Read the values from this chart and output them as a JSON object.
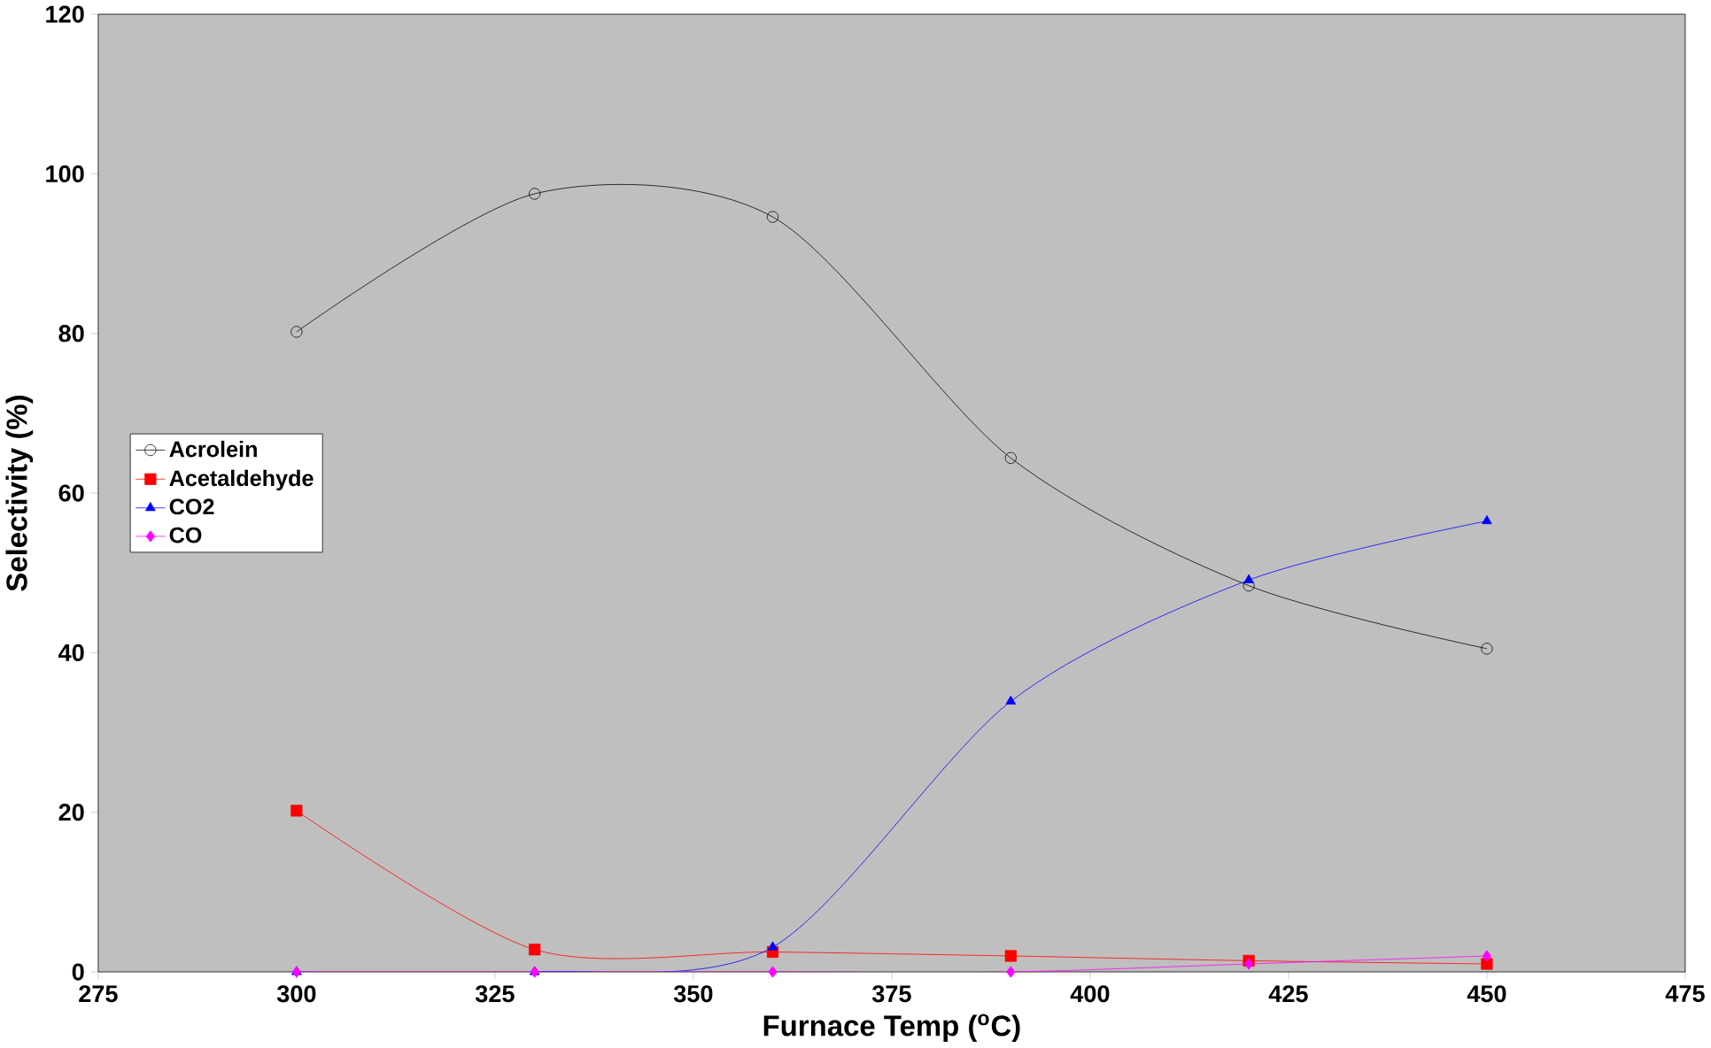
{
  "chart_data": {
    "type": "line",
    "xlabel": "Furnace Temp ($^{o}$C)",
    "ylabel": "Selectivity (%)",
    "x": [
      300,
      330,
      360,
      390,
      420,
      450
    ],
    "series": [
      {
        "name": "Acrolein",
        "color": "#000000",
        "marker": "circle",
        "values": [
          80.2,
          97.5,
          94.6,
          64.4,
          48.4,
          40.5
        ]
      },
      {
        "name": "Acetaldehyde",
        "color": "#ff0000",
        "marker": "square",
        "values": [
          20.2,
          2.8,
          2.5,
          2.0,
          1.4,
          1.0
        ]
      },
      {
        "name": "CO2",
        "color": "#0000ff",
        "marker": "triangle",
        "values": [
          0,
          0,
          3.1,
          33.9,
          49.1,
          56.5
        ]
      },
      {
        "name": "CO",
        "color": "#ff00ff",
        "marker": "diamond",
        "values": [
          0,
          0,
          0,
          0,
          1.0,
          2.0
        ]
      }
    ],
    "xlim": [
      275,
      475
    ],
    "xticks": [
      275,
      300,
      325,
      350,
      375,
      400,
      425,
      450,
      475
    ],
    "ylim": [
      0,
      120
    ],
    "yticks": [
      0,
      20,
      40,
      60,
      80,
      100,
      120
    ],
    "grid": false,
    "legend": "center left"
  }
}
